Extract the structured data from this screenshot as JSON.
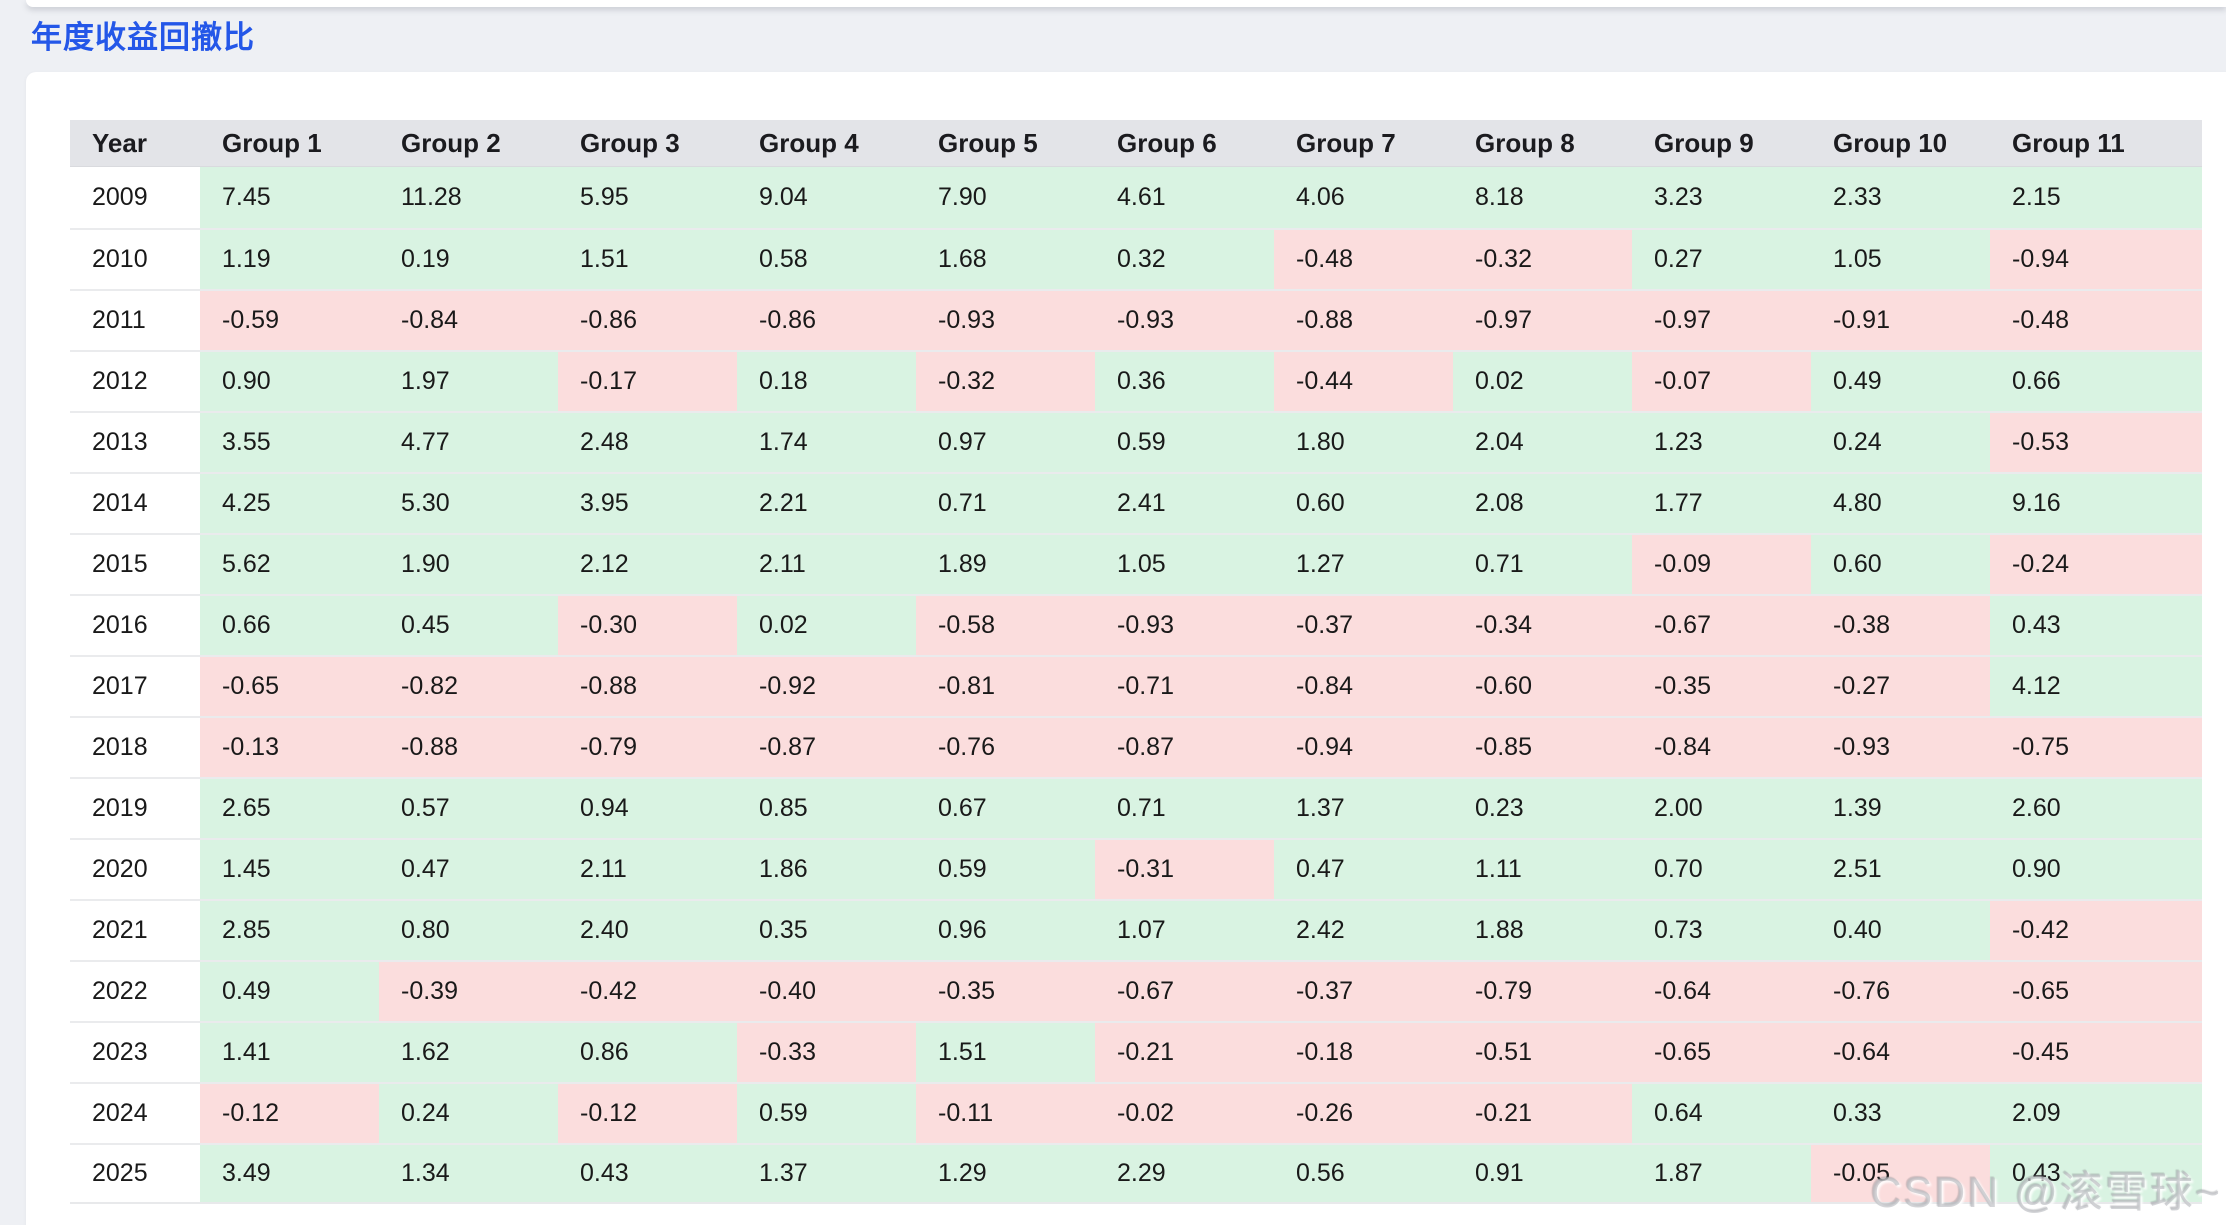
{
  "page": {
    "title": "年度收益回撤比",
    "watermark": "CSDN @滚雪球~"
  },
  "colors": {
    "title_blue": "#2457e8",
    "positive_bg": "#d9f3e2",
    "negative_bg": "#fbdddd",
    "header_bg": "#e3e4e8",
    "page_bg": "#eef0f4",
    "card_bg": "#ffffff"
  },
  "chart_data": {
    "type": "table",
    "title": "年度收益回撤比",
    "columns": [
      "Year",
      "Group 1",
      "Group 2",
      "Group 3",
      "Group 4",
      "Group 5",
      "Group 6",
      "Group 7",
      "Group 8",
      "Group 9",
      "Group 10",
      "Group 11"
    ],
    "rows": [
      {
        "year": "2009",
        "values": [
          7.45,
          11.28,
          5.95,
          9.04,
          7.9,
          4.61,
          4.06,
          8.18,
          3.23,
          2.33,
          2.15
        ]
      },
      {
        "year": "2010",
        "values": [
          1.19,
          0.19,
          1.51,
          0.58,
          1.68,
          0.32,
          -0.48,
          -0.32,
          0.27,
          1.05,
          -0.94
        ]
      },
      {
        "year": "2011",
        "values": [
          -0.59,
          -0.84,
          -0.86,
          -0.86,
          -0.93,
          -0.93,
          -0.88,
          -0.97,
          -0.97,
          -0.91,
          -0.48
        ]
      },
      {
        "year": "2012",
        "values": [
          0.9,
          1.97,
          -0.17,
          0.18,
          -0.32,
          0.36,
          -0.44,
          0.02,
          -0.07,
          0.49,
          0.66
        ]
      },
      {
        "year": "2013",
        "values": [
          3.55,
          4.77,
          2.48,
          1.74,
          0.97,
          0.59,
          1.8,
          2.04,
          1.23,
          0.24,
          -0.53
        ]
      },
      {
        "year": "2014",
        "values": [
          4.25,
          5.3,
          3.95,
          2.21,
          0.71,
          2.41,
          0.6,
          2.08,
          1.77,
          4.8,
          9.16
        ]
      },
      {
        "year": "2015",
        "values": [
          5.62,
          1.9,
          2.12,
          2.11,
          1.89,
          1.05,
          1.27,
          0.71,
          -0.09,
          0.6,
          -0.24
        ]
      },
      {
        "year": "2016",
        "values": [
          0.66,
          0.45,
          -0.3,
          0.02,
          -0.58,
          -0.93,
          -0.37,
          -0.34,
          -0.67,
          -0.38,
          0.43
        ]
      },
      {
        "year": "2017",
        "values": [
          -0.65,
          -0.82,
          -0.88,
          -0.92,
          -0.81,
          -0.71,
          -0.84,
          -0.6,
          -0.35,
          -0.27,
          4.12
        ]
      },
      {
        "year": "2018",
        "values": [
          -0.13,
          -0.88,
          -0.79,
          -0.87,
          -0.76,
          -0.87,
          -0.94,
          -0.85,
          -0.84,
          -0.93,
          -0.75
        ]
      },
      {
        "year": "2019",
        "values": [
          2.65,
          0.57,
          0.94,
          0.85,
          0.67,
          0.71,
          1.37,
          0.23,
          2.0,
          1.39,
          2.6
        ]
      },
      {
        "year": "2020",
        "values": [
          1.45,
          0.47,
          2.11,
          1.86,
          0.59,
          -0.31,
          0.47,
          1.11,
          0.7,
          2.51,
          0.9
        ]
      },
      {
        "year": "2021",
        "values": [
          2.85,
          0.8,
          2.4,
          0.35,
          0.96,
          1.07,
          2.42,
          1.88,
          0.73,
          0.4,
          -0.42
        ]
      },
      {
        "year": "2022",
        "values": [
          0.49,
          -0.39,
          -0.42,
          -0.4,
          -0.35,
          -0.67,
          -0.37,
          -0.79,
          -0.64,
          -0.76,
          -0.65
        ]
      },
      {
        "year": "2023",
        "values": [
          1.41,
          1.62,
          0.86,
          -0.33,
          1.51,
          -0.21,
          -0.18,
          -0.51,
          -0.65,
          -0.64,
          -0.45
        ]
      },
      {
        "year": "2024",
        "values": [
          -0.12,
          0.24,
          -0.12,
          0.59,
          -0.11,
          -0.02,
          -0.26,
          -0.21,
          0.64,
          0.33,
          2.09
        ]
      },
      {
        "year": "2025",
        "values": [
          3.49,
          1.34,
          0.43,
          1.37,
          1.29,
          2.29,
          0.56,
          0.91,
          1.87,
          -0.05,
          0.43
        ]
      }
    ],
    "color_rule": "cell background = positive_bg when value >= 0, negative_bg when value < 0",
    "value_format": "2 decimals"
  }
}
